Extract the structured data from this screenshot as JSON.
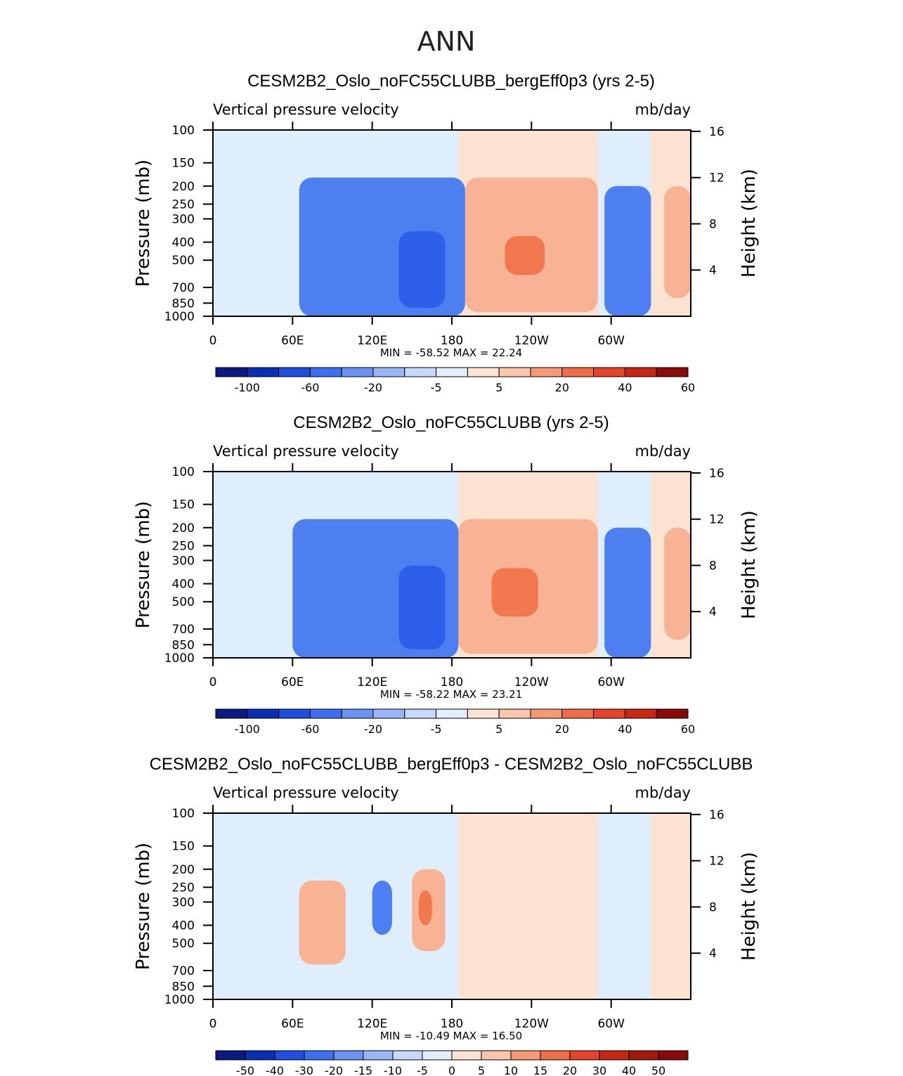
{
  "page_title": "ANN",
  "chart_data": [
    {
      "type": "contour",
      "title": "CESM2B2_Oslo_noFC55CLUBB_bergEff0p3 (yrs 2-5)",
      "variable": "Vertical pressure velocity",
      "units": "mb/day",
      "ylabel": "Pressure (mb)",
      "y2label": "Height (km)",
      "x_ticks": [
        "0",
        "60E",
        "120E",
        "180",
        "120W",
        "60W"
      ],
      "y_ticks": [
        "100",
        "150",
        "200",
        "250",
        "300",
        "400",
        "500",
        "700",
        "850",
        "1000"
      ],
      "y2_ticks": [
        "16",
        "12",
        "8",
        "4"
      ],
      "stats": "MIN = -58.52   MAX =  22.24",
      "min": -58.52,
      "max": 22.24,
      "colorbar_labels": [
        "-100",
        "-60",
        "-20",
        "-5",
        "5",
        "20",
        "40",
        "60"
      ],
      "regions": [
        {
          "name": "ascent-west-pacific",
          "lon": [
            65,
            190
          ],
          "p": [
            180,
            1000
          ],
          "level": 1
        },
        {
          "name": "ascent-core",
          "lon": [
            140,
            175
          ],
          "p": [
            350,
            900
          ],
          "level": 2
        },
        {
          "name": "descent-east-pacific",
          "lon": [
            190,
            290
          ],
          "p": [
            180,
            950
          ],
          "level": 3
        },
        {
          "name": "descent-core",
          "lon": [
            220,
            250
          ],
          "p": [
            370,
            600
          ],
          "level": 4
        },
        {
          "name": "ascent-america",
          "lon": [
            295,
            330
          ],
          "p": [
            200,
            1000
          ],
          "level": 1
        },
        {
          "name": "descent-atlantic",
          "lon": [
            340,
            360
          ],
          "p": [
            200,
            800
          ],
          "level": 3
        }
      ]
    },
    {
      "type": "contour",
      "title": "CESM2B2_Oslo_noFC55CLUBB (yrs 2-5)",
      "variable": "Vertical pressure velocity",
      "units": "mb/day",
      "ylabel": "Pressure (mb)",
      "y2label": "Height (km)",
      "x_ticks": [
        "0",
        "60E",
        "120E",
        "180",
        "120W",
        "60W"
      ],
      "y_ticks": [
        "100",
        "150",
        "200",
        "250",
        "300",
        "400",
        "500",
        "700",
        "850",
        "1000"
      ],
      "y2_ticks": [
        "16",
        "12",
        "8",
        "4"
      ],
      "stats": "MIN = -58.22   MAX =  23.21",
      "min": -58.22,
      "max": 23.21,
      "colorbar_labels": [
        "-100",
        "-60",
        "-20",
        "-5",
        "5",
        "20",
        "40",
        "60"
      ],
      "regions": [
        {
          "name": "ascent-west-pacific",
          "lon": [
            60,
            185
          ],
          "p": [
            180,
            1000
          ],
          "level": 1
        },
        {
          "name": "ascent-core",
          "lon": [
            140,
            175
          ],
          "p": [
            320,
            900
          ],
          "level": 2
        },
        {
          "name": "descent-east-pacific",
          "lon": [
            185,
            290
          ],
          "p": [
            180,
            950
          ],
          "level": 3
        },
        {
          "name": "descent-core",
          "lon": [
            210,
            245
          ],
          "p": [
            330,
            600
          ],
          "level": 4
        },
        {
          "name": "ascent-america",
          "lon": [
            295,
            330
          ],
          "p": [
            200,
            1000
          ],
          "level": 1
        },
        {
          "name": "descent-atlantic",
          "lon": [
            340,
            360
          ],
          "p": [
            200,
            800
          ],
          "level": 3
        }
      ]
    },
    {
      "type": "contour",
      "title": "CESM2B2_Oslo_noFC55CLUBB_bergEff0p3 - CESM2B2_Oslo_noFC55CLUBB",
      "variable": "Vertical pressure velocity",
      "units": "mb/day",
      "ylabel": "Pressure (mb)",
      "y2label": "Height (km)",
      "x_ticks": [
        "0",
        "60E",
        "120E",
        "180",
        "120W",
        "60W"
      ],
      "y_ticks": [
        "100",
        "150",
        "200",
        "250",
        "300",
        "400",
        "500",
        "700",
        "850",
        "1000"
      ],
      "y2_ticks": [
        "16",
        "12",
        "8",
        "4"
      ],
      "stats": "MIN = -10.49   MAX =  16.50",
      "min": -10.49,
      "max": 16.5,
      "colorbar_labels": [
        "-50",
        "-40",
        "-30",
        "-20",
        "-15",
        "-10",
        "-5",
        "0",
        "5",
        "10",
        "15",
        "20",
        "30",
        "40",
        "50"
      ],
      "regions": [
        {
          "name": "positive-west",
          "lon": [
            65,
            100
          ],
          "p": [
            230,
            650
          ],
          "level": 3
        },
        {
          "name": "negative-120E",
          "lon": [
            120,
            135
          ],
          "p": [
            230,
            450
          ],
          "level": 1
        },
        {
          "name": "positive-160E",
          "lon": [
            150,
            175
          ],
          "p": [
            200,
            550
          ],
          "level": 3
        },
        {
          "name": "positive-core",
          "lon": [
            155,
            165
          ],
          "p": [
            260,
            400
          ],
          "level": 4
        }
      ]
    }
  ]
}
